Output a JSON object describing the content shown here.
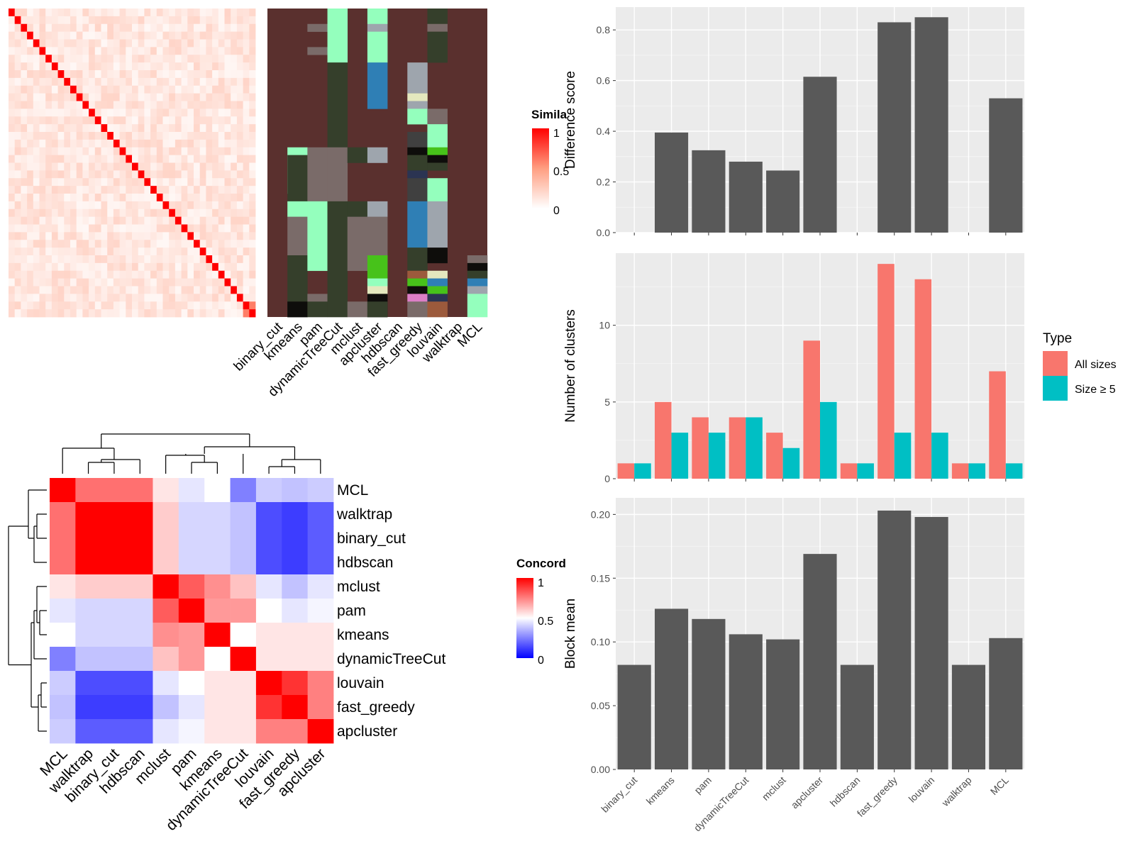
{
  "methods": [
    "binary_cut",
    "kmeans",
    "pam",
    "dynamicTreeCut",
    "mclust",
    "apcluster",
    "hdbscan",
    "fast_greedy",
    "louvain",
    "walktrap",
    "MCL"
  ],
  "colors": {
    "panel_bg": "#ebebeb",
    "bar_fill": "#595959",
    "all_sizes": "#f8766d",
    "size_ge5": "#00bfc4",
    "sim_high": "#ff0000",
    "sim_mid": "#ff9e81",
    "sim_low": "#ffffff",
    "conc_high": "#ff0000",
    "conc_mid": "#ffffff",
    "conc_low": "#0000ff"
  },
  "similarity_heatmap": {
    "legend_title": "Simila",
    "legend_ticks": [
      "1",
      "0.5",
      "0"
    ],
    "n": 40,
    "column_labels": [
      "binary_cut",
      "kmeans",
      "pam",
      "dynamicTreeCut",
      "mclust",
      "apcluster",
      "hdbscan",
      "fast_greedy",
      "louvain",
      "walktrap",
      "MCL"
    ]
  },
  "concordance_heatmap": {
    "legend_title": "Concord",
    "legend_ticks": [
      "1",
      "0.5",
      "0"
    ],
    "order": [
      "MCL",
      "walktrap",
      "binary_cut",
      "hdbscan",
      "mclust",
      "pam",
      "kmeans",
      "dynamicTreeCut",
      "louvain",
      "fast_greedy",
      "apcluster"
    ],
    "matrix": [
      [
        1.0,
        0.78,
        0.78,
        0.78,
        0.55,
        0.45,
        0.5,
        0.25,
        0.4,
        0.38,
        0.4
      ],
      [
        0.78,
        1.0,
        1.0,
        1.0,
        0.6,
        0.42,
        0.42,
        0.38,
        0.15,
        0.12,
        0.18
      ],
      [
        0.78,
        1.0,
        1.0,
        1.0,
        0.6,
        0.42,
        0.42,
        0.38,
        0.15,
        0.12,
        0.18
      ],
      [
        0.78,
        1.0,
        1.0,
        1.0,
        0.6,
        0.42,
        0.42,
        0.38,
        0.15,
        0.12,
        0.18
      ],
      [
        0.55,
        0.6,
        0.6,
        0.6,
        1.0,
        0.82,
        0.72,
        0.62,
        0.45,
        0.38,
        0.45
      ],
      [
        0.45,
        0.42,
        0.42,
        0.42,
        0.82,
        1.0,
        0.7,
        0.7,
        0.5,
        0.45,
        0.48
      ],
      [
        0.5,
        0.42,
        0.42,
        0.42,
        0.72,
        0.7,
        1.0,
        0.5,
        0.55,
        0.55,
        0.55
      ],
      [
        0.25,
        0.38,
        0.38,
        0.38,
        0.62,
        0.7,
        0.5,
        1.0,
        0.55,
        0.55,
        0.55
      ],
      [
        0.4,
        0.15,
        0.15,
        0.15,
        0.45,
        0.5,
        0.55,
        0.55,
        1.0,
        0.9,
        0.75
      ],
      [
        0.38,
        0.12,
        0.12,
        0.12,
        0.38,
        0.45,
        0.55,
        0.55,
        0.9,
        1.0,
        0.75
      ],
      [
        0.4,
        0.18,
        0.18,
        0.18,
        0.45,
        0.48,
        0.55,
        0.55,
        0.75,
        0.75,
        1.0
      ]
    ]
  },
  "chart_data": [
    {
      "type": "bar",
      "categories": [
        "binary_cut",
        "kmeans",
        "pam",
        "dynamicTreeCut",
        "mclust",
        "apcluster",
        "hdbscan",
        "fast_greedy",
        "louvain",
        "walktrap",
        "MCL"
      ],
      "values": [
        0,
        0.395,
        0.325,
        0.28,
        0.245,
        0.615,
        0,
        0.83,
        0.85,
        0,
        0.53
      ],
      "xlabel": "",
      "ylabel": "Difference score",
      "ylim": [
        0,
        0.89
      ],
      "yticks": [
        "0.0",
        "0.2",
        "0.4",
        "0.6",
        "0.8"
      ],
      "grid": true
    },
    {
      "type": "bar",
      "categories": [
        "binary_cut",
        "kmeans",
        "pam",
        "dynamicTreeCut",
        "mclust",
        "apcluster",
        "hdbscan",
        "fast_greedy",
        "louvain",
        "walktrap",
        "MCL"
      ],
      "series": [
        {
          "name": "All sizes",
          "values": [
            1,
            5,
            4,
            4,
            3,
            9,
            1,
            14,
            13,
            1,
            7
          ]
        },
        {
          "name": "Size ≥ 5",
          "values": [
            1,
            3,
            3,
            4,
            2,
            5,
            1,
            3,
            3,
            1,
            1
          ]
        }
      ],
      "xlabel": "",
      "ylabel": "Number of clusters",
      "ylim": [
        0,
        14.7
      ],
      "yticks": [
        "0",
        "5",
        "10"
      ],
      "legend_title": "Type",
      "legend_position": "right",
      "grid": true
    },
    {
      "type": "bar",
      "categories": [
        "binary_cut",
        "kmeans",
        "pam",
        "dynamicTreeCut",
        "mclust",
        "apcluster",
        "hdbscan",
        "fast_greedy",
        "louvain",
        "walktrap",
        "MCL"
      ],
      "values": [
        0.082,
        0.126,
        0.118,
        0.106,
        0.102,
        0.169,
        0.082,
        0.203,
        0.198,
        0.082,
        0.103
      ],
      "xlabel": "",
      "ylabel": "Block mean",
      "ylim": [
        0,
        0.213
      ],
      "yticks": [
        "0.00",
        "0.05",
        "0.10",
        "0.15",
        "0.20"
      ],
      "grid": true
    }
  ]
}
